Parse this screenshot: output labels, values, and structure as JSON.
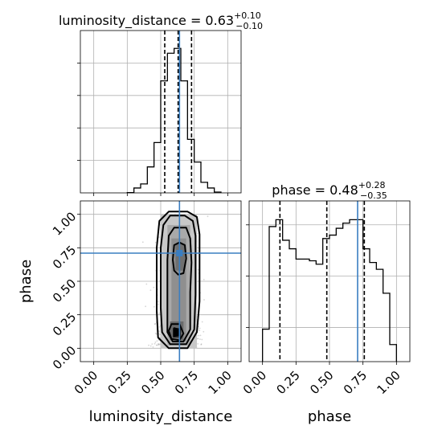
{
  "chart_data": {
    "type": "corner",
    "colors": {
      "truth": "#3a7ec1",
      "hist": "#000000",
      "grid": "#b0b0b0",
      "scatter": "#888888"
    },
    "parameters": [
      "luminosity_distance",
      "phase"
    ],
    "truths": {
      "luminosity_distance": 0.64,
      "phase": 0.71
    },
    "xticks": [
      "0.00",
      "0.25",
      "0.50",
      "0.75",
      "1.00"
    ],
    "yticks": [
      "0.00",
      "0.25",
      "0.50",
      "0.75",
      "1.00"
    ],
    "xlim": [
      -0.1,
      1.1
    ],
    "ylim": [
      -0.1,
      1.1
    ],
    "luminosity_distance": {
      "title_main": "luminosity_distance = 0.63",
      "title_sup": "+0.10",
      "title_sub": "−0.10",
      "xlabel": "luminosity_distance",
      "quantiles": [
        0.53,
        0.63,
        0.73
      ],
      "hist": {
        "bin_edges": [
          0.25,
          0.3,
          0.35,
          0.4,
          0.45,
          0.5,
          0.55,
          0.6,
          0.65,
          0.7,
          0.75,
          0.8,
          0.85,
          0.9,
          0.95
        ],
        "counts": [
          0.002,
          0.03,
          0.055,
          0.16,
          0.31,
          0.69,
          0.86,
          0.89,
          0.69,
          0.33,
          0.19,
          0.065,
          0.03,
          0.005
        ]
      }
    },
    "phase": {
      "title_main": "phase = 0.48",
      "title_sup": "+0.28",
      "title_sub": "−0.35",
      "xlabel": "phase",
      "ylabel": "phase",
      "quantiles": [
        0.13,
        0.48,
        0.76
      ],
      "hist": {
        "bin_edges": [
          0.0,
          0.05,
          0.1,
          0.15,
          0.2,
          0.25,
          0.3,
          0.35,
          0.4,
          0.45,
          0.5,
          0.55,
          0.6,
          0.65,
          0.7,
          0.75,
          0.8,
          0.85,
          0.9,
          0.95,
          1.0
        ],
        "counts": [
          0.19,
          0.79,
          0.83,
          0.71,
          0.66,
          0.6,
          0.6,
          0.59,
          0.57,
          0.72,
          0.74,
          0.78,
          0.81,
          0.83,
          0.83,
          0.66,
          0.58,
          0.54,
          0.4,
          0.1
        ]
      }
    },
    "density_2d": {
      "xcenter": 0.63,
      "xsigma": 0.07,
      "contours": [
        {
          "points": [
            [
              0.56,
              0.0
            ],
            [
              0.7,
              0.0
            ],
            [
              0.77,
              0.12
            ],
            [
              0.79,
              0.35
            ],
            [
              0.79,
              0.6
            ],
            [
              0.79,
              0.85
            ],
            [
              0.77,
              0.98
            ],
            [
              0.7,
              1.02
            ],
            [
              0.56,
              1.02
            ],
            [
              0.49,
              0.95
            ],
            [
              0.47,
              0.75
            ],
            [
              0.47,
              0.5
            ],
            [
              0.47,
              0.28
            ],
            [
              0.48,
              0.08
            ]
          ]
        },
        {
          "points": [
            [
              0.57,
              0.03
            ],
            [
              0.69,
              0.03
            ],
            [
              0.75,
              0.14
            ],
            [
              0.76,
              0.4
            ],
            [
              0.76,
              0.62
            ],
            [
              0.76,
              0.84
            ],
            [
              0.74,
              0.95
            ],
            [
              0.68,
              0.99
            ],
            [
              0.57,
              0.99
            ],
            [
              0.52,
              0.92
            ],
            [
              0.5,
              0.75
            ],
            [
              0.5,
              0.52
            ],
            [
              0.5,
              0.3
            ],
            [
              0.51,
              0.12
            ]
          ]
        },
        {
          "points": [
            [
              0.59,
              0.05
            ],
            [
              0.67,
              0.05
            ],
            [
              0.72,
              0.14
            ],
            [
              0.72,
              0.42
            ],
            [
              0.73,
              0.64
            ],
            [
              0.72,
              0.82
            ],
            [
              0.69,
              0.9
            ],
            [
              0.6,
              0.9
            ],
            [
              0.56,
              0.84
            ],
            [
              0.55,
              0.66
            ],
            [
              0.55,
              0.45
            ],
            [
              0.55,
              0.25
            ],
            [
              0.55,
              0.12
            ]
          ]
        },
        {
          "points": [
            [
              0.58,
              0.07
            ],
            [
              0.64,
              0.06
            ],
            [
              0.67,
              0.11
            ],
            [
              0.64,
              0.18
            ],
            [
              0.58,
              0.18
            ],
            [
              0.56,
              0.13
            ]
          ]
        },
        {
          "points": [
            [
              0.6,
              0.09
            ],
            [
              0.64,
              0.1
            ],
            [
              0.64,
              0.14
            ],
            [
              0.6,
              0.15
            ]
          ]
        },
        {
          "points": [
            [
              0.63,
              0.55
            ],
            [
              0.67,
              0.56
            ],
            [
              0.69,
              0.67
            ],
            [
              0.68,
              0.77
            ],
            [
              0.64,
              0.79
            ],
            [
              0.6,
              0.77
            ],
            [
              0.59,
              0.66
            ],
            [
              0.6,
              0.58
            ]
          ]
        }
      ]
    }
  }
}
